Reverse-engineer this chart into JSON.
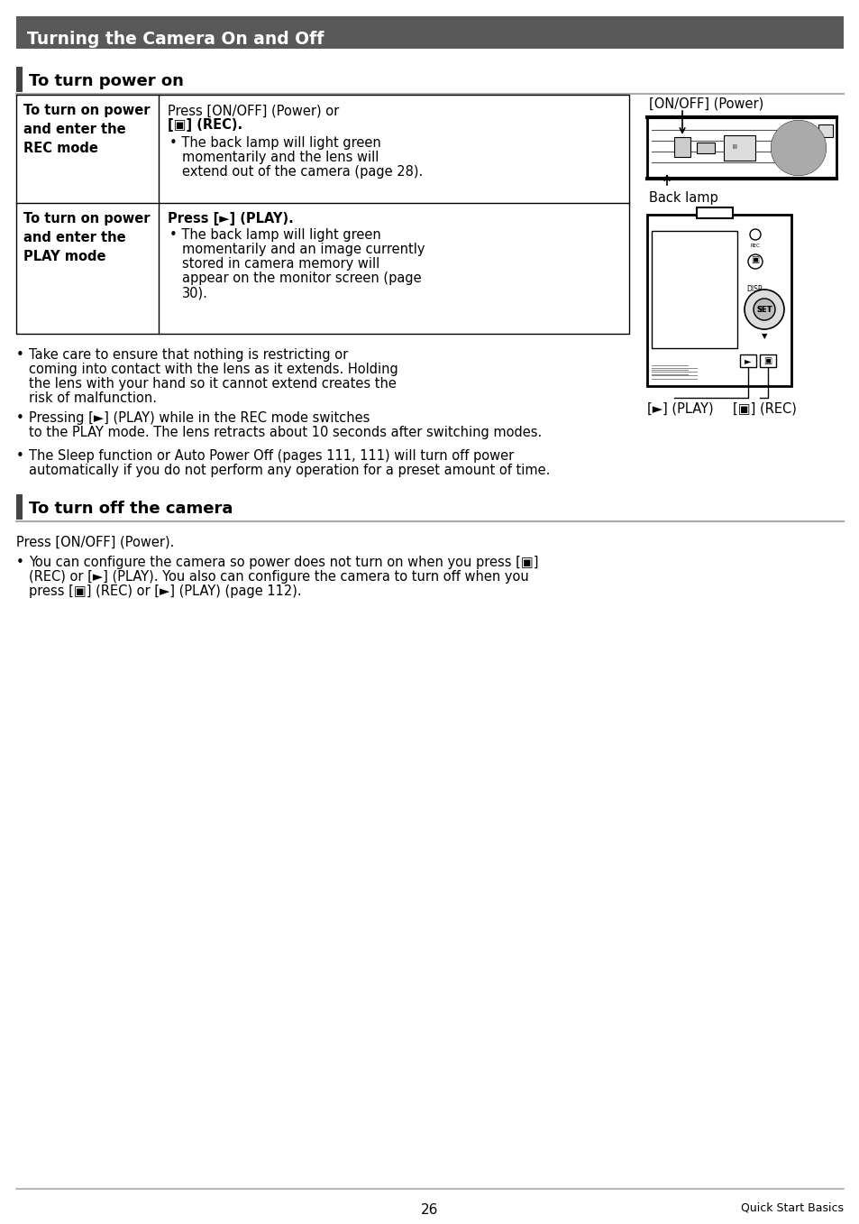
{
  "page_bg": "#ffffff",
  "header_bg": "#595959",
  "header_text": "Turning the Camera On and Off",
  "header_text_color": "#ffffff",
  "section1_title": "To turn power on",
  "section1_bar_color": "#595959",
  "section2_title": "To turn off the camera",
  "section2_bar_color": "#595959",
  "caption1": "[ON/OFF] (Power)",
  "caption2": "Back lamp",
  "caption3_left": "[►] (PLAY)",
  "caption3_right": "[▣] (REC)",
  "footer_page": "26",
  "footer_right": "Quick Start Basics"
}
